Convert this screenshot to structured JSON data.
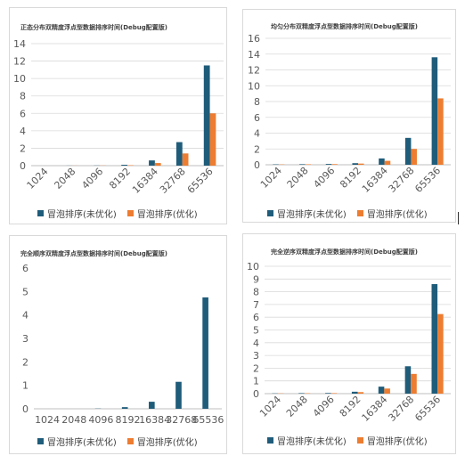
{
  "colors": {
    "unoptimized": "#1f5c7a",
    "optimized": "#ed7d31",
    "grid": "#d9d9d9",
    "axis_text": "#595959"
  },
  "chart_data": [
    {
      "type": "bar",
      "title": "正态分布双精度浮点型数据排序时间(Debug配置版)",
      "categories": [
        "1024",
        "2048",
        "4096",
        "8192",
        "16384",
        "32768",
        "65536"
      ],
      "series": [
        {
          "name": "冒泡排序(未优化)",
          "values": [
            0.0,
            0.01,
            0.02,
            0.1,
            0.6,
            2.7,
            11.5
          ]
        },
        {
          "name": "冒泡排序(优化)",
          "values": [
            0.0,
            0.01,
            0.02,
            0.05,
            0.3,
            1.4,
            6.0
          ]
        }
      ],
      "ylim": [
        0,
        14
      ],
      "ytick_step": 2,
      "grid": true,
      "rotated_xlabels": true,
      "xlabel": "",
      "ylabel": "",
      "legend": "bottom"
    },
    {
      "type": "bar",
      "title": "均匀分布双精度浮点型数据排序时间(Debug配置版)",
      "categories": [
        "1024",
        "2048",
        "4096",
        "8192",
        "16384",
        "32768",
        "65536"
      ],
      "series": [
        {
          "name": "冒泡排序(未优化)",
          "values": [
            0.05,
            0.07,
            0.1,
            0.2,
            0.8,
            3.4,
            13.6
          ]
        },
        {
          "name": "冒泡排序(优化)",
          "values": [
            0.04,
            0.06,
            0.08,
            0.15,
            0.5,
            2.0,
            8.4
          ]
        }
      ],
      "ylim": [
        0,
        16
      ],
      "ytick_step": 2,
      "grid": true,
      "rotated_xlabels": true,
      "xlabel": "",
      "ylabel": "",
      "legend": "bottom"
    },
    {
      "type": "bar",
      "title": "完全顺序双精度浮点型数据排序时间(Debug配置版)",
      "categories": [
        "1024",
        "2048",
        "4096",
        "8192",
        "16384",
        "32768",
        "65536"
      ],
      "series": [
        {
          "name": "冒泡排序(未优化)",
          "values": [
            0.0,
            0.0,
            0.01,
            0.07,
            0.3,
            1.15,
            4.75
          ]
        },
        {
          "name": "冒泡排序(优化)",
          "values": [
            0.0,
            0.0,
            0.0,
            0.0,
            0.0,
            0.0,
            0.0
          ]
        }
      ],
      "ylim": [
        0,
        6
      ],
      "ytick_step": 1,
      "grid": false,
      "rotated_xlabels": false,
      "xlabel": "",
      "ylabel": "",
      "legend": "bottom"
    },
    {
      "type": "bar",
      "title": "完全逆序双精度浮点型数据排序时间(Debug配置版)",
      "categories": [
        "1024",
        "2048",
        "4096",
        "8192",
        "16384",
        "32768",
        "65536"
      ],
      "series": [
        {
          "name": "冒泡排序(未优化)",
          "values": [
            0.02,
            0.04,
            0.05,
            0.15,
            0.55,
            2.15,
            8.6
          ]
        },
        {
          "name": "冒泡排序(优化)",
          "values": [
            0.02,
            0.03,
            0.04,
            0.12,
            0.4,
            1.55,
            6.25
          ]
        }
      ],
      "ylim": [
        0,
        10
      ],
      "ytick_step": 1,
      "grid": true,
      "rotated_xlabels": true,
      "xlabel": "",
      "ylabel": "",
      "legend": "bottom"
    }
  ]
}
